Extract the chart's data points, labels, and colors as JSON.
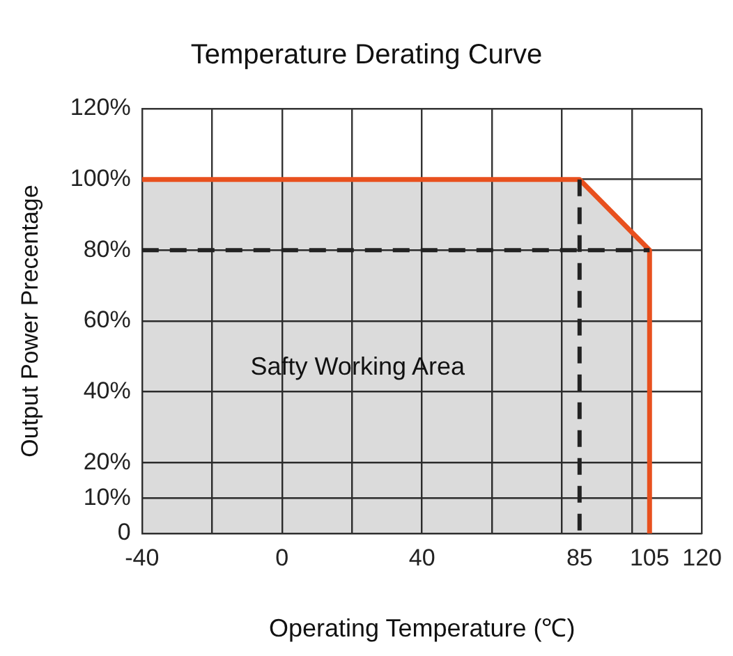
{
  "chart_data": {
    "type": "area",
    "title": "Temperature Derating Curve",
    "xlabel": "Operating Temperature (℃)",
    "ylabel": "Output Power Precentage",
    "xlim": [
      -40,
      120
    ],
    "xticks": [
      -40,
      {
        "value": -20,
        "label": null
      },
      0,
      {
        "value": 20,
        "label": null
      },
      40,
      {
        "value": 60,
        "label": null
      },
      {
        "value": 80,
        "label": null
      },
      85,
      {
        "value": 100,
        "label": null
      },
      105,
      120
    ],
    "ylim": [
      0,
      120
    ],
    "yticks": [
      0,
      {
        "value": 10,
        "label": "10%"
      },
      {
        "value": 20,
        "label": "20%"
      },
      {
        "value": 40,
        "label": "40%"
      },
      {
        "value": 60,
        "label": "60%"
      },
      {
        "value": 80,
        "label": "80%"
      },
      {
        "value": 100,
        "label": "100%"
      },
      {
        "value": 120,
        "label": "120%"
      }
    ],
    "grid": true,
    "legend": false,
    "series": [
      {
        "type": "line",
        "line_style": "dashed",
        "color": "#222222",
        "x": [
          -40,
          105
        ],
        "values": [
          80,
          80
        ]
      },
      {
        "type": "line",
        "line_style": "dashed",
        "color": "#222222",
        "x": [
          85,
          85
        ],
        "values": [
          100,
          0
        ]
      },
      {
        "type": "area",
        "line_style": "solid",
        "color": "#e8501e",
        "x": [
          -40,
          85,
          105,
          105
        ],
        "values": [
          100,
          100,
          80,
          0
        ]
      }
    ],
    "annotations": [
      "Safty Working Area"
    ]
  }
}
